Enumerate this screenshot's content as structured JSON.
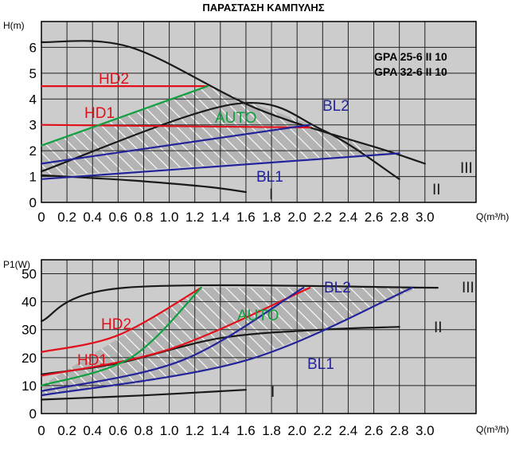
{
  "title": "ΠΑΡΑΣΤΑΣΗ ΚΑΜΠΥΛΗΣ",
  "models": [
    "GPA 25-6 II 10",
    "GPA 32-6 II 10"
  ],
  "colors": {
    "black": "#1a1a1a",
    "red": "#e2101a",
    "green": "#10a040",
    "blue": "#24249a",
    "plot_bg": "#cccccc",
    "hatch_bg": "#b4b4b4",
    "grid": "#222222"
  },
  "chart_data": [
    {
      "type": "line",
      "ylabel": "H(m)",
      "xlabel": "Q(m³/h)",
      "xlim": [
        0,
        3.4
      ],
      "ylim": [
        0,
        7
      ],
      "xticks": [
        "0",
        "0.2",
        "0.4",
        "0.6",
        "0.8",
        "1.0",
        "1.2",
        "1.4",
        "1.6",
        "1.8",
        "2.0",
        "2.2",
        "2.4",
        "2.6",
        "2.8",
        "3.0"
      ],
      "yticks": [
        "0",
        "1",
        "2",
        "3",
        "4",
        "5",
        "6"
      ],
      "grid": true,
      "hatched_region": {
        "label": "AUTO",
        "points": [
          [
            0,
            2.2
          ],
          [
            1.3,
            4.5
          ],
          [
            2.7,
            1.9
          ],
          [
            0,
            1.0
          ]
        ]
      },
      "series": [
        {
          "name": "III",
          "color": "black",
          "points": [
            [
              0,
              6.2
            ],
            [
              0.7,
              6.0
            ],
            [
              1.7,
              3.6
            ],
            [
              2.7,
              2.0
            ],
            [
              3.0,
              1.5
            ]
          ]
        },
        {
          "name": "II",
          "color": "black",
          "points": [
            [
              0,
              1.2
            ],
            [
              1.5,
              3.8
            ],
            [
              2.2,
              2.8
            ],
            [
              2.8,
              0.9
            ]
          ]
        },
        {
          "name": "I",
          "color": "black",
          "points": [
            [
              0,
              1.05
            ],
            [
              0.7,
              0.85
            ],
            [
              1.3,
              0.6
            ],
            [
              1.6,
              0.4
            ]
          ]
        },
        {
          "name": "HD2",
          "color": "red",
          "points": [
            [
              0,
              4.5
            ],
            [
              1.3,
              4.5
            ]
          ]
        },
        {
          "name": "HD1",
          "color": "red",
          "points": [
            [
              0,
              3.0
            ],
            [
              2.1,
              2.9
            ]
          ]
        },
        {
          "name": "AUTO",
          "color": "green",
          "points": [
            [
              0,
              2.2
            ],
            [
              1.3,
              4.5
            ]
          ]
        },
        {
          "name": "BL2",
          "color": "blue",
          "points": [
            [
              0,
              1.5
            ],
            [
              2.1,
              3.0
            ]
          ]
        },
        {
          "name": "BL1",
          "color": "blue",
          "points": [
            [
              0,
              0.9
            ],
            [
              2.8,
              1.9
            ]
          ]
        }
      ],
      "annotations": [
        "HD2",
        "HD1",
        "AUTO",
        "BL2",
        "BL1",
        "III",
        "II",
        "I"
      ]
    },
    {
      "type": "line",
      "ylabel": "P1(W)",
      "xlabel": "Q(m³/h)",
      "xlim": [
        0,
        3.4
      ],
      "ylim": [
        0,
        55
      ],
      "xticks": [
        "0",
        "0.2",
        "0.4",
        "0.6",
        "0.8",
        "1.0",
        "1.2",
        "1.4",
        "1.6",
        "1.8",
        "2.0",
        "2.2",
        "2.4",
        "2.6",
        "2.8",
        "3.0"
      ],
      "yticks": [
        "0",
        "10",
        "20",
        "30",
        "40",
        "50"
      ],
      "grid": true,
      "hatched_region": {
        "label": "AUTO",
        "points": [
          [
            0,
            10
          ],
          [
            1.25,
            45
          ],
          [
            2.95,
            45
          ],
          [
            2.2,
            30
          ],
          [
            1.6,
            19
          ],
          [
            0.8,
            11
          ],
          [
            0,
            6.5
          ]
        ]
      },
      "series": [
        {
          "name": "III",
          "color": "black",
          "points": [
            [
              0,
              33
            ],
            [
              0.65,
              45
            ],
            [
              3.1,
              45
            ]
          ]
        },
        {
          "name": "II",
          "color": "black",
          "points": [
            [
              0,
              14
            ],
            [
              0.6,
              18
            ],
            [
              1.4,
              27
            ],
            [
              2.2,
              30
            ],
            [
              2.8,
              31
            ]
          ]
        },
        {
          "name": "I",
          "color": "black",
          "points": [
            [
              0,
              5
            ],
            [
              0.8,
              6.5
            ],
            [
              1.6,
              8.5
            ]
          ]
        },
        {
          "name": "HD2",
          "color": "red",
          "points": [
            [
              0,
              22
            ],
            [
              0.6,
              28
            ],
            [
              1.25,
              45
            ]
          ]
        },
        {
          "name": "HD1",
          "color": "red",
          "points": [
            [
              0,
              13.5
            ],
            [
              1.0,
              23
            ],
            [
              2.1,
              45
            ]
          ]
        },
        {
          "name": "AUTO",
          "color": "green",
          "points": [
            [
              0,
              10
            ],
            [
              0.7,
              20
            ],
            [
              1.25,
              45
            ]
          ]
        },
        {
          "name": "BL2",
          "color": "blue",
          "points": [
            [
              0,
              8
            ],
            [
              1.1,
              19
            ],
            [
              2.05,
              45
            ]
          ]
        },
        {
          "name": "BL1",
          "color": "blue",
          "points": [
            [
              0,
              6.5
            ],
            [
              1.6,
              19
            ],
            [
              2.9,
              45
            ]
          ]
        }
      ],
      "annotations": [
        "HD2",
        "HD1",
        "AUTO",
        "BL2",
        "BL1",
        "III",
        "II",
        "I"
      ]
    }
  ]
}
